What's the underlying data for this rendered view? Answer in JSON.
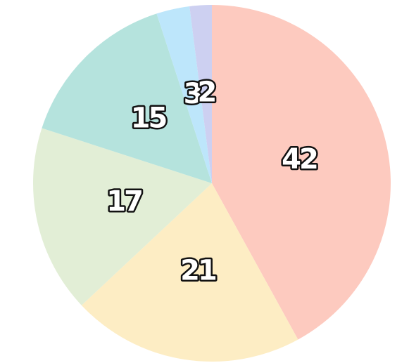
{
  "chart_data": {
    "type": "pie",
    "values": [
      42,
      21,
      17,
      15,
      3,
      2
    ],
    "colors": [
      "#fdcabf",
      "#fdedc4",
      "#e2eed6",
      "#b5e3dd",
      "#bde6fb",
      "#cdd0f1"
    ]
  }
}
